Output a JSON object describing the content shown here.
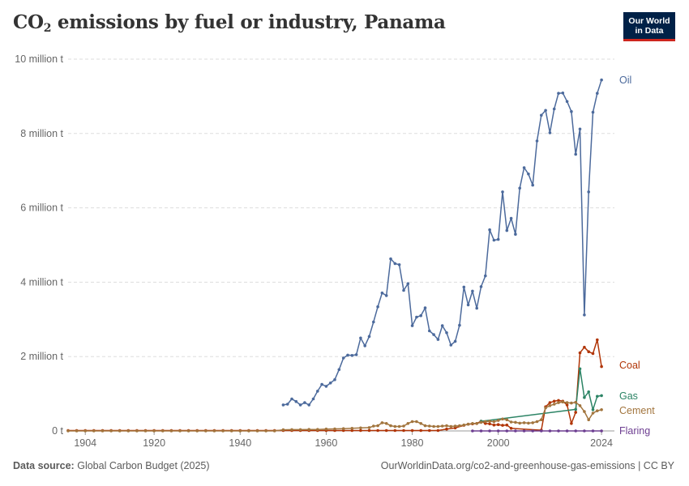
{
  "header": {
    "title_prefix": "CO",
    "title_sub": "2",
    "title_suffix": " emissions by fuel or industry, Panama",
    "logo_line1": "Our World",
    "logo_line2": "in Data"
  },
  "footer": {
    "source_label": "Data source:",
    "source_value": "Global Carbon Budget (2025)",
    "url": "OurWorldinData.org/co2-and-greenhouse-gas-emissions | CC BY"
  },
  "colors": {
    "oil": "#4c6a9c",
    "coal": "#b13507",
    "gas": "#2c8465",
    "cement": "#a2753e",
    "flaring": "#6d3e91"
  },
  "chart_data": {
    "type": "line",
    "title": "CO2 emissions by fuel or industry, Panama",
    "xlim": [
      1900,
      2027
    ],
    "ylim": [
      0,
      10000000
    ],
    "x_ticks": [
      1904,
      1920,
      1940,
      1960,
      1980,
      2000,
      2024
    ],
    "y_ticks": [
      {
        "value": 0,
        "label": "0 t"
      },
      {
        "value": 2000000,
        "label": "2 million t"
      },
      {
        "value": 4000000,
        "label": "4 million t"
      },
      {
        "value": 6000000,
        "label": "6 million t"
      },
      {
        "value": 8000000,
        "label": "8 million t"
      },
      {
        "value": 10000000,
        "label": "10 million t"
      }
    ],
    "grid": true,
    "series": [
      {
        "name": "Oil",
        "color": "#4c6a9c",
        "x": [
          1950,
          1951,
          1952,
          1953,
          1954,
          1955,
          1956,
          1957,
          1958,
          1959,
          1960,
          1961,
          1962,
          1963,
          1964,
          1965,
          1966,
          1967,
          1968,
          1969,
          1970,
          1971,
          1972,
          1973,
          1974,
          1975,
          1976,
          1977,
          1978,
          1979,
          1980,
          1981,
          1982,
          1983,
          1984,
          1985,
          1986,
          1987,
          1988,
          1989,
          1990,
          1991,
          1992,
          1993,
          1994,
          1995,
          1996,
          1997,
          1998,
          1999,
          2000,
          2001,
          2002,
          2003,
          2004,
          2005,
          2006,
          2007,
          2008,
          2009,
          2010,
          2011,
          2012,
          2013,
          2014,
          2015,
          2016,
          2017,
          2018,
          2019,
          2020,
          2021,
          2022,
          2023,
          2024
        ],
        "y": [
          700000,
          720000,
          860000,
          790000,
          700000,
          760000,
          700000,
          860000,
          1070000,
          1250000,
          1200000,
          1290000,
          1380000,
          1650000,
          1960000,
          2040000,
          2030000,
          2050000,
          2500000,
          2290000,
          2540000,
          2930000,
          3340000,
          3710000,
          3640000,
          4630000,
          4500000,
          4470000,
          3780000,
          3960000,
          2830000,
          3060000,
          3100000,
          3310000,
          2690000,
          2590000,
          2460000,
          2830000,
          2640000,
          2310000,
          2410000,
          2840000,
          3870000,
          3390000,
          3760000,
          3300000,
          3880000,
          4170000,
          5410000,
          5130000,
          5150000,
          6430000,
          5390000,
          5720000,
          5290000,
          6530000,
          7080000,
          6910000,
          6610000,
          7800000,
          8490000,
          8620000,
          8020000,
          8660000,
          9080000,
          9090000,
          8860000,
          8590000,
          7440000,
          8120000,
          3120000,
          6430000,
          8570000,
          9080000,
          9440000
        ]
      },
      {
        "name": "Coal",
        "color": "#b13507",
        "x": [
          1900,
          1902,
          1904,
          1906,
          1908,
          1910,
          1912,
          1914,
          1916,
          1918,
          1920,
          1922,
          1924,
          1926,
          1928,
          1930,
          1932,
          1934,
          1936,
          1938,
          1940,
          1942,
          1944,
          1946,
          1948,
          1950,
          1952,
          1954,
          1956,
          1958,
          1960,
          1962,
          1964,
          1966,
          1968,
          1970,
          1972,
          1974,
          1976,
          1978,
          1980,
          1982,
          1984,
          1986,
          1988,
          1990,
          1992,
          1993,
          1994,
          1995,
          1996,
          1997,
          1998,
          1999,
          2000,
          2001,
          2002,
          2003,
          2010,
          2011,
          2012,
          2013,
          2014,
          2015,
          2016,
          2017,
          2018,
          2019,
          2020,
          2021,
          2022,
          2023,
          2024
        ],
        "y": [
          10000,
          10000,
          10000,
          10000,
          10000,
          10000,
          10000,
          10000,
          10000,
          10000,
          10000,
          10000,
          10000,
          10000,
          10000,
          10000,
          10000,
          10000,
          10000,
          10000,
          10000,
          10000,
          10000,
          10000,
          10000,
          10000,
          10000,
          10000,
          10000,
          10000,
          10000,
          10000,
          10000,
          10000,
          10000,
          10000,
          10000,
          10000,
          10000,
          10000,
          10000,
          10000,
          10000,
          10000,
          50000,
          80000,
          150000,
          180000,
          190000,
          200000,
          260000,
          200000,
          190000,
          160000,
          170000,
          150000,
          160000,
          70000,
          20000,
          650000,
          760000,
          800000,
          820000,
          800000,
          700000,
          200000,
          500000,
          2100000,
          2250000,
          2130000,
          2080000,
          2450000,
          1730000
        ]
      },
      {
        "name": "Gas",
        "color": "#2c8465",
        "x": [
          1996,
          2018,
          2019,
          2020,
          2021,
          2022,
          2023,
          2024
        ],
        "y": [
          260000,
          580000,
          1670000,
          900000,
          1050000,
          570000,
          930000,
          950000
        ]
      },
      {
        "name": "Cement",
        "color": "#a2753e",
        "x": [
          1900,
          1902,
          1904,
          1906,
          1908,
          1910,
          1912,
          1914,
          1916,
          1918,
          1920,
          1922,
          1924,
          1926,
          1928,
          1930,
          1932,
          1934,
          1936,
          1938,
          1940,
          1942,
          1944,
          1946,
          1948,
          1950,
          1952,
          1954,
          1956,
          1958,
          1960,
          1962,
          1964,
          1966,
          1968,
          1970,
          1971,
          1972,
          1973,
          1974,
          1975,
          1976,
          1977,
          1978,
          1979,
          1980,
          1981,
          1982,
          1983,
          1984,
          1985,
          1986,
          1987,
          1988,
          1989,
          1990,
          1991,
          1992,
          1993,
          1994,
          1995,
          1996,
          1997,
          1998,
          1999,
          2000,
          2001,
          2002,
          2003,
          2004,
          2005,
          2006,
          2007,
          2008,
          2009,
          2010,
          2011,
          2012,
          2013,
          2014,
          2015,
          2016,
          2017,
          2018,
          2019,
          2020,
          2021,
          2022,
          2023,
          2024
        ],
        "y": [
          0,
          0,
          0,
          0,
          0,
          0,
          0,
          0,
          0,
          0,
          0,
          0,
          0,
          0,
          0,
          0,
          0,
          0,
          0,
          0,
          0,
          0,
          0,
          0,
          0,
          30000,
          35000,
          35000,
          40000,
          40000,
          50000,
          55000,
          60000,
          70000,
          80000,
          90000,
          130000,
          140000,
          220000,
          200000,
          140000,
          120000,
          120000,
          130000,
          200000,
          250000,
          250000,
          200000,
          140000,
          130000,
          120000,
          120000,
          130000,
          140000,
          120000,
          130000,
          140000,
          160000,
          180000,
          200000,
          200000,
          230000,
          250000,
          260000,
          250000,
          280000,
          320000,
          300000,
          240000,
          230000,
          210000,
          220000,
          210000,
          220000,
          250000,
          300000,
          620000,
          680000,
          720000,
          760000,
          780000,
          760000,
          750000,
          770000,
          680000,
          520000,
          300000,
          480000,
          540000,
          570000
        ]
      },
      {
        "name": "Flaring",
        "color": "#6d3e91",
        "x": [
          1994,
          1996,
          1998,
          2000,
          2002,
          2004,
          2006,
          2008,
          2010,
          2012,
          2014,
          2016,
          2018,
          2020,
          2022,
          2024
        ],
        "y": [
          0,
          0,
          0,
          0,
          0,
          0,
          0,
          0,
          0,
          0,
          0,
          0,
          0,
          0,
          0,
          0
        ]
      }
    ],
    "end_labels": [
      "Oil",
      "Coal",
      "Gas",
      "Cement",
      "Flaring"
    ]
  }
}
